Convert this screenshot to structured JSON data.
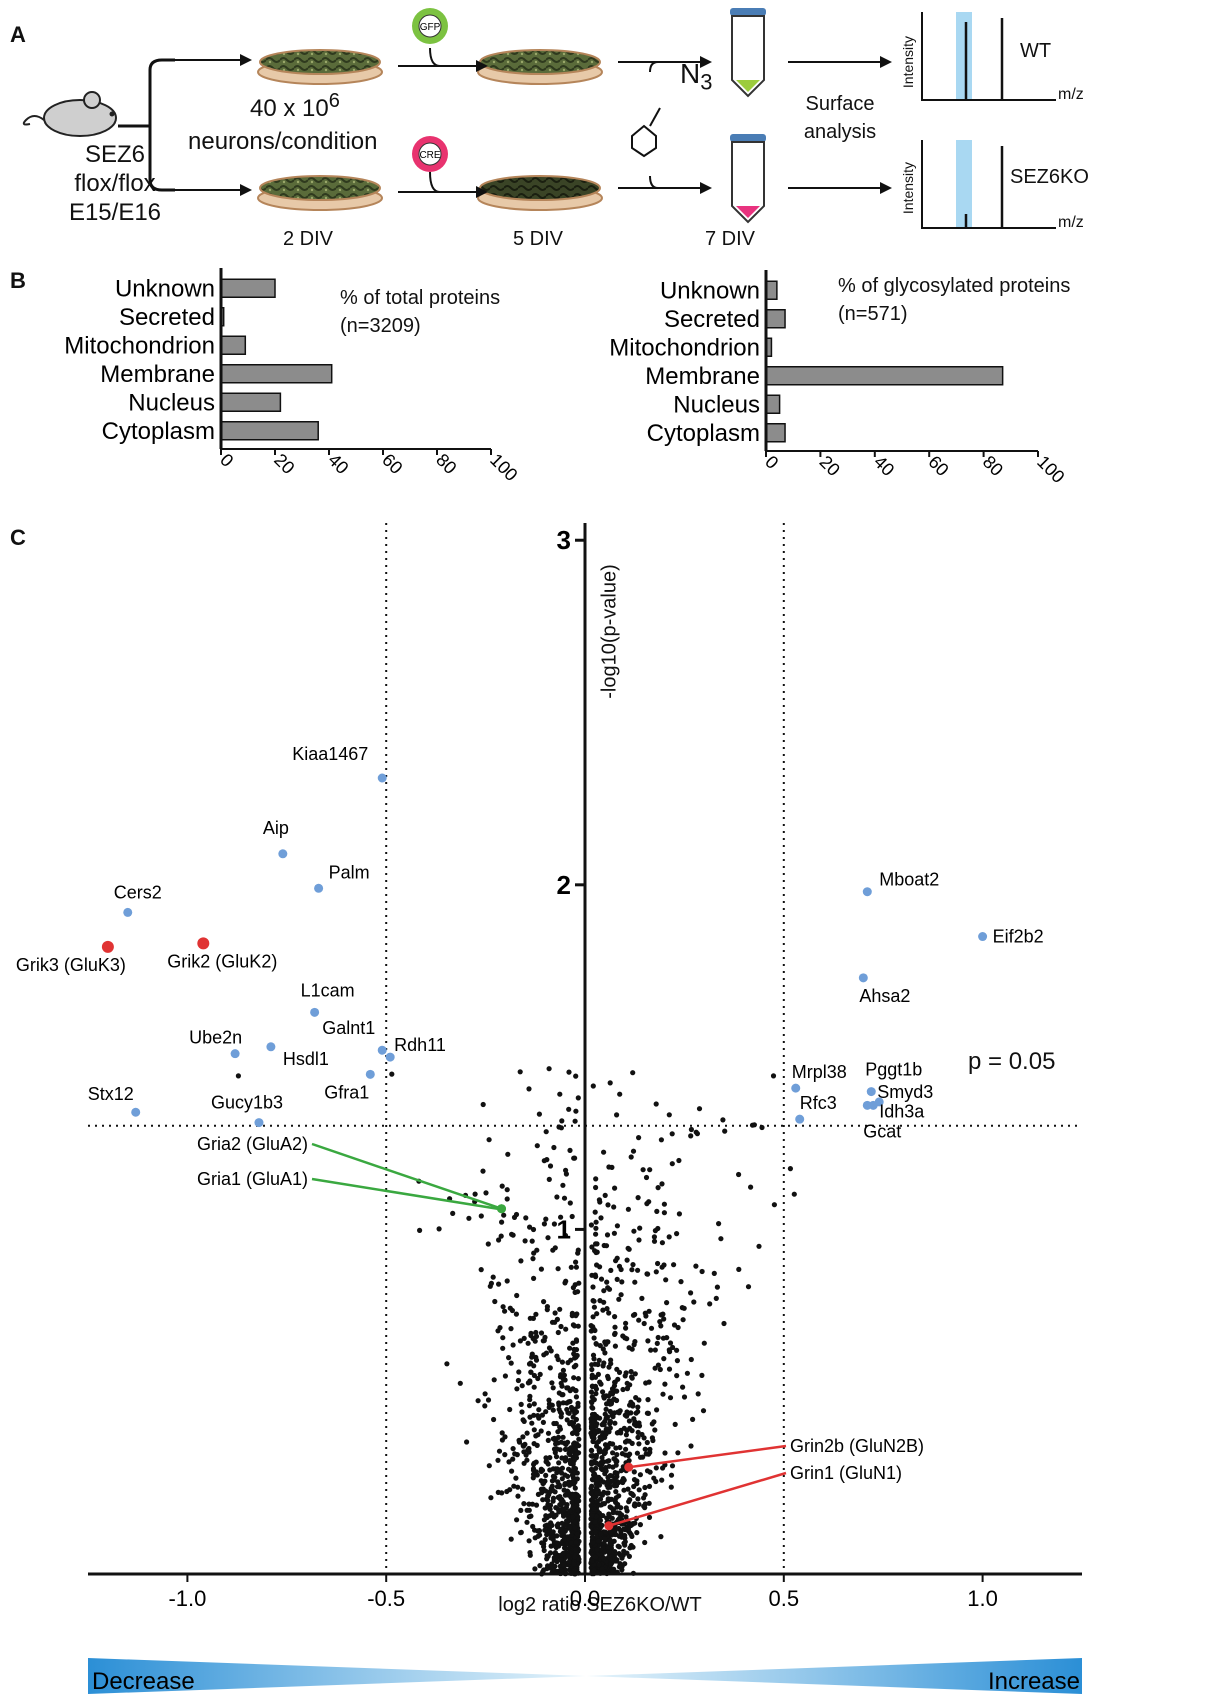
{
  "panel_labels": {
    "a": "A",
    "b": "B",
    "c": "C"
  },
  "panel_a": {
    "mouse_lines": [
      "SEZ6",
      "flox/flox",
      "E15/E16"
    ],
    "neurons_main": "40 x 10",
    "neurons_sup": "6",
    "neurons_line2": "neurons/condition",
    "virus_gfp": "GFP",
    "virus_cre": "CRE",
    "azide_label": "N",
    "azide_sub": "3",
    "surface_line1": "Surface",
    "surface_line2": "analysis",
    "time_points": [
      "2 DIV",
      "5 DIV",
      "7 DIV"
    ],
    "spectra": [
      {
        "condition": "WT",
        "ylabel": "Intensity",
        "xlabel": "m/z"
      },
      {
        "condition": "SEZ6KO",
        "ylabel": "Intensity",
        "xlabel": "m/z"
      }
    ],
    "colors": {
      "gfp": "#7cc241",
      "cre": "#e8336f",
      "tube_top": "#4a7db5",
      "tube_wt": "#9ccc3c",
      "tube_ko": "#e8337f",
      "highlight": "#a9d8f2"
    }
  },
  "chart_data": [
    {
      "type": "bar",
      "orientation": "horizontal",
      "title": "% of total proteins",
      "subtitle": "(n=3209)",
      "categories": [
        "Unknown",
        "Secreted",
        "Mitochondrion",
        "Membrane",
        "Nucleus",
        "Cytoplasm"
      ],
      "values": [
        20,
        1,
        9,
        41,
        22,
        36
      ],
      "xlim": [
        0,
        100
      ],
      "xticks": [
        "0",
        "20",
        "40",
        "60",
        "80",
        "100"
      ],
      "bar_color": "#8c8c8c"
    },
    {
      "type": "bar",
      "orientation": "horizontal",
      "title": "% of glycosylated proteins",
      "subtitle": "(n=571)",
      "categories": [
        "Unknown",
        "Secreted",
        "Mitochondrion",
        "Membrane",
        "Nucleus",
        "Cytoplasm"
      ],
      "values": [
        4,
        7,
        2,
        87,
        5,
        7
      ],
      "xlim": [
        0,
        100
      ],
      "xticks": [
        "0",
        "20",
        "40",
        "60",
        "80",
        "100"
      ],
      "bar_color": "#8c8c8c"
    },
    {
      "type": "scatter",
      "xlabel": "log2 ratio SEZ6KO/WT",
      "ylabel": "-log10(p-value)",
      "xlim": [
        -1.25,
        1.25
      ],
      "ylim": [
        0,
        3.05
      ],
      "xticks": [
        "-1.0",
        "-0.5",
        "0.0",
        "0.5",
        "1.0"
      ],
      "yticks": [
        "1",
        "2",
        "3"
      ],
      "threshold_y": 1.301,
      "threshold_label": "p = 0.05",
      "vlines": [
        -0.5,
        0.5
      ],
      "gradient": {
        "left": "Decrease",
        "right": "Increase",
        "color_edge": "#2b8fd6",
        "color_center": "#e6f4fb"
      },
      "highlighted": [
        {
          "label": "Kiaa1467",
          "x": -0.51,
          "y": 2.31,
          "color": "#6f9ed8"
        },
        {
          "label": "Aip",
          "x": -0.76,
          "y": 2.09,
          "color": "#6f9ed8"
        },
        {
          "label": "Palm",
          "x": -0.67,
          "y": 1.99,
          "color": "#6f9ed8"
        },
        {
          "label": "Cers2",
          "x": -1.15,
          "y": 1.92,
          "color": "#6f9ed8"
        },
        {
          "label": "Grik3 (GluK3)",
          "x": -1.2,
          "y": 1.82,
          "color": "#e03333"
        },
        {
          "label": "Grik2 (GluK2)",
          "x": -0.96,
          "y": 1.83,
          "color": "#e03333"
        },
        {
          "label": "L1cam",
          "x": -0.68,
          "y": 1.63,
          "color": "#6f9ed8"
        },
        {
          "label": "Ube2n",
          "x": -0.88,
          "y": 1.51,
          "color": "#6f9ed8"
        },
        {
          "label": "Hsdl1",
          "x": -0.79,
          "y": 1.53,
          "color": "#6f9ed8"
        },
        {
          "label": "Galnt1",
          "x": -0.51,
          "y": 1.52,
          "color": "#6f9ed8"
        },
        {
          "label": "Rdh11",
          "x": -0.49,
          "y": 1.5,
          "color": "#6f9ed8"
        },
        {
          "label": "Gfra1",
          "x": -0.54,
          "y": 1.45,
          "color": "#6f9ed8"
        },
        {
          "label": "Stx12",
          "x": -1.13,
          "y": 1.34,
          "color": "#6f9ed8"
        },
        {
          "label": "Gucy1b3",
          "x": -0.82,
          "y": 1.31,
          "color": "#6f9ed8"
        },
        {
          "label": "Mboat2",
          "x": 0.71,
          "y": 1.98,
          "color": "#6f9ed8"
        },
        {
          "label": "Eif2b2",
          "x": 1.0,
          "y": 1.85,
          "color": "#6f9ed8"
        },
        {
          "label": "Ahsa2",
          "x": 0.7,
          "y": 1.73,
          "color": "#6f9ed8"
        },
        {
          "label": "Mrpl38",
          "x": 0.53,
          "y": 1.41,
          "color": "#6f9ed8"
        },
        {
          "label": "Pggt1b",
          "x": 0.72,
          "y": 1.4,
          "color": "#6f9ed8"
        },
        {
          "label": "Smyd3",
          "x": 0.74,
          "y": 1.37,
          "color": "#6f9ed8"
        },
        {
          "label": "Idh3a",
          "x": 0.725,
          "y": 1.36,
          "color": "#6f9ed8"
        },
        {
          "label": "Gcat",
          "x": 0.71,
          "y": 1.36,
          "color": "#6f9ed8"
        },
        {
          "label": "Rfc3",
          "x": 0.54,
          "y": 1.32,
          "color": "#6f9ed8"
        },
        {
          "label": "Gria2 (GluA2)",
          "x": -0.21,
          "y": 1.06,
          "color": "#3aa840"
        },
        {
          "label": "Gria1 (GluA1)",
          "x": -0.21,
          "y": 1.06,
          "color": "#3aa840"
        },
        {
          "label": "Grin2b (GluN2B)",
          "x": 0.11,
          "y": 0.31,
          "color": "#e03333"
        },
        {
          "label": "Grin1 (GluN1)",
          "x": 0.06,
          "y": 0.14,
          "color": "#e03333"
        }
      ]
    }
  ]
}
